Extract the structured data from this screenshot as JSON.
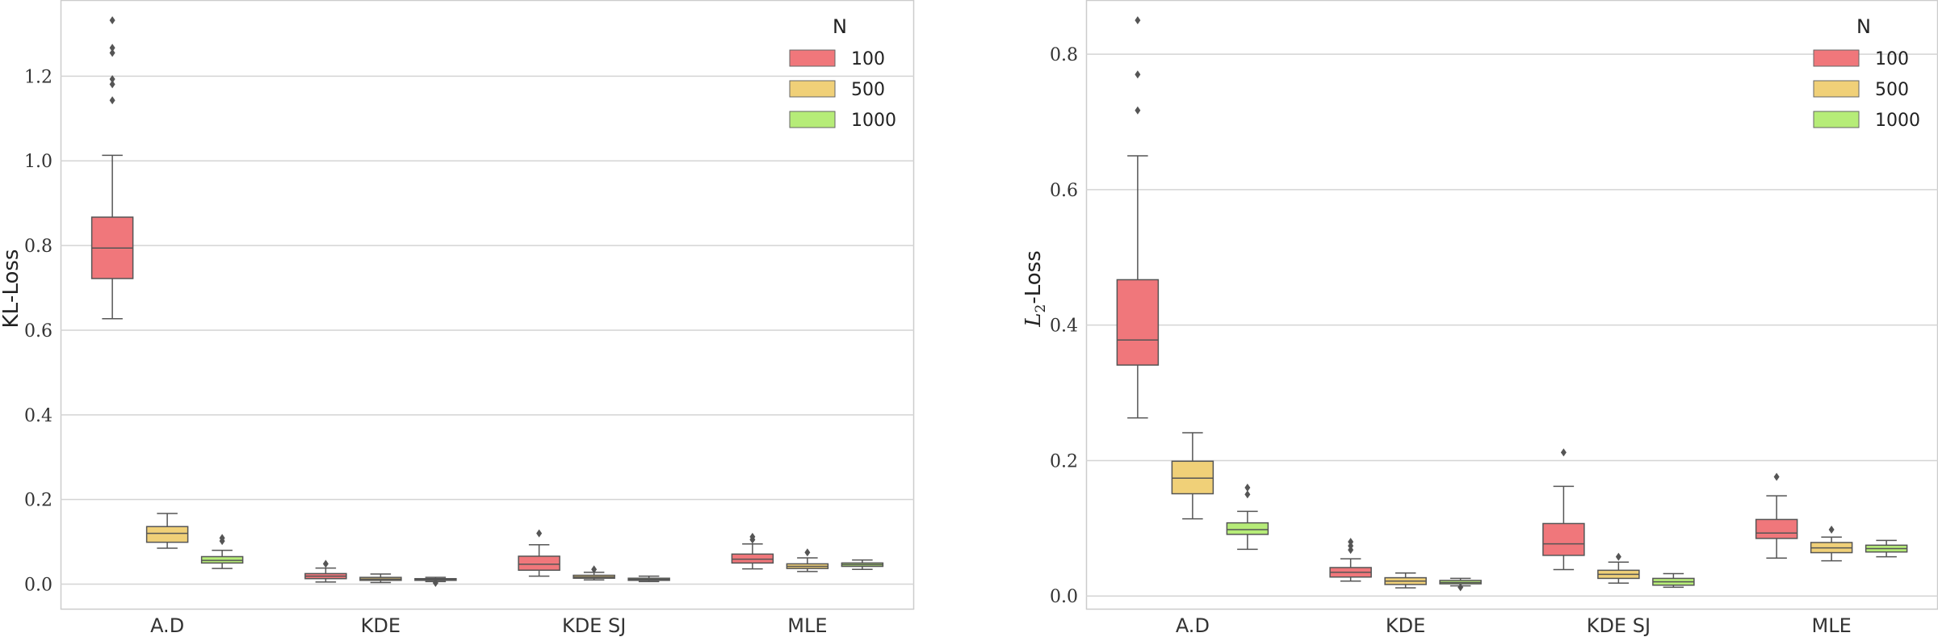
{
  "chart_data": [
    {
      "type": "box",
      "ylabel": "KL-Loss",
      "ylabel_main": "KL",
      "ylabel_rest": "-Loss",
      "ylim": [
        -0.06,
        1.38
      ],
      "yticks": [
        0.0,
        0.2,
        0.4,
        0.6,
        0.8,
        1.0,
        1.2
      ],
      "ytick_labels": [
        "0.0",
        "0.2",
        "0.4",
        "0.6",
        "0.8",
        "1.0",
        "1.2"
      ],
      "categories": [
        "A.D",
        "KDE",
        "KDE SJ",
        "MLE"
      ],
      "legend": {
        "title": "N",
        "placement": "top-right"
      },
      "grid": "horizontal",
      "series": [
        {
          "name": "100",
          "color": "#f0777b",
          "boxes": [
            {
              "whislo": 0.627,
              "q1": 0.722,
              "med": 0.794,
              "q3": 0.867,
              "whishi": 1.013,
              "fliers": [
                1.143,
                1.181,
                1.193,
                1.255,
                1.267,
                1.332
              ]
            },
            {
              "whislo": 0.005,
              "q1": 0.013,
              "med": 0.019,
              "q3": 0.025,
              "whishi": 0.038,
              "fliers": [
                0.048
              ]
            },
            {
              "whislo": 0.019,
              "q1": 0.033,
              "med": 0.047,
              "q3": 0.066,
              "whishi": 0.093,
              "fliers": [
                0.12
              ]
            },
            {
              "whislo": 0.036,
              "q1": 0.05,
              "med": 0.059,
              "q3": 0.071,
              "whishi": 0.095,
              "fliers": [
                0.105,
                0.112
              ]
            }
          ]
        },
        {
          "name": "500",
          "color": "#f0d078",
          "boxes": [
            {
              "whislo": 0.085,
              "q1": 0.099,
              "med": 0.12,
              "q3": 0.136,
              "whishi": 0.167,
              "fliers": []
            },
            {
              "whislo": 0.004,
              "q1": 0.009,
              "med": 0.012,
              "q3": 0.016,
              "whishi": 0.024,
              "fliers": []
            },
            {
              "whislo": 0.01,
              "q1": 0.014,
              "med": 0.017,
              "q3": 0.021,
              "whishi": 0.028,
              "fliers": [
                0.035
              ]
            },
            {
              "whislo": 0.03,
              "q1": 0.037,
              "med": 0.042,
              "q3": 0.048,
              "whishi": 0.062,
              "fliers": [
                0.075
              ]
            }
          ]
        },
        {
          "name": "1000",
          "color": "#b6ec78",
          "boxes": [
            {
              "whislo": 0.037,
              "q1": 0.05,
              "med": 0.056,
              "q3": 0.065,
              "whishi": 0.08,
              "fliers": [
                0.102,
                0.109
              ]
            },
            {
              "whislo": 0.006,
              "q1": 0.009,
              "med": 0.011,
              "q3": 0.013,
              "whishi": 0.016,
              "fliers": [
                0.003
              ]
            },
            {
              "whislo": 0.006,
              "q1": 0.009,
              "med": 0.011,
              "q3": 0.014,
              "whishi": 0.019,
              "fliers": []
            },
            {
              "whislo": 0.035,
              "q1": 0.042,
              "med": 0.046,
              "q3": 0.05,
              "whishi": 0.057,
              "fliers": []
            }
          ]
        }
      ]
    },
    {
      "type": "box",
      "ylabel": "L2-Loss",
      "ylabel_main": "L",
      "ylabel_sub": "2",
      "ylabel_rest": "-Loss",
      "ylim": [
        -0.02,
        0.88
      ],
      "yticks": [
        0.0,
        0.2,
        0.4,
        0.6,
        0.8
      ],
      "ytick_labels": [
        "0.0",
        "0.2",
        "0.4",
        "0.6",
        "0.8"
      ],
      "categories": [
        "A.D",
        "KDE",
        "KDE SJ",
        "MLE"
      ],
      "legend": {
        "title": "N",
        "placement": "top-right"
      },
      "grid": "horizontal",
      "series": [
        {
          "name": "100",
          "color": "#f0777b",
          "boxes": [
            {
              "whislo": 0.263,
              "q1": 0.341,
              "med": 0.378,
              "q3": 0.467,
              "whishi": 0.65,
              "fliers": [
                0.717,
                0.77,
                0.85
              ]
            },
            {
              "whislo": 0.022,
              "q1": 0.028,
              "med": 0.035,
              "q3": 0.042,
              "whishi": 0.055,
              "fliers": [
                0.068,
                0.074,
                0.08
              ]
            },
            {
              "whislo": 0.039,
              "q1": 0.06,
              "med": 0.077,
              "q3": 0.107,
              "whishi": 0.162,
              "fliers": [
                0.212
              ]
            },
            {
              "whislo": 0.056,
              "q1": 0.085,
              "med": 0.093,
              "q3": 0.113,
              "whishi": 0.148,
              "fliers": [
                0.176
              ]
            }
          ]
        },
        {
          "name": "500",
          "color": "#f0d078",
          "boxes": [
            {
              "whislo": 0.114,
              "q1": 0.151,
              "med": 0.174,
              "q3": 0.199,
              "whishi": 0.241,
              "fliers": []
            },
            {
              "whislo": 0.012,
              "q1": 0.017,
              "med": 0.022,
              "q3": 0.027,
              "whishi": 0.034,
              "fliers": []
            },
            {
              "whislo": 0.019,
              "q1": 0.026,
              "med": 0.032,
              "q3": 0.038,
              "whishi": 0.05,
              "fliers": [
                0.058
              ]
            },
            {
              "whislo": 0.052,
              "q1": 0.064,
              "med": 0.071,
              "q3": 0.079,
              "whishi": 0.087,
              "fliers": [
                0.098
              ]
            }
          ]
        },
        {
          "name": "1000",
          "color": "#b6ec78",
          "boxes": [
            {
              "whislo": 0.069,
              "q1": 0.091,
              "med": 0.098,
              "q3": 0.108,
              "whishi": 0.125,
              "fliers": [
                0.15,
                0.16
              ]
            },
            {
              "whislo": 0.015,
              "q1": 0.018,
              "med": 0.02,
              "q3": 0.023,
              "whishi": 0.026,
              "fliers": [
                0.013
              ]
            },
            {
              "whislo": 0.013,
              "q1": 0.016,
              "med": 0.021,
              "q3": 0.026,
              "whishi": 0.033,
              "fliers": []
            },
            {
              "whislo": 0.058,
              "q1": 0.065,
              "med": 0.07,
              "q3": 0.075,
              "whishi": 0.082,
              "fliers": []
            }
          ]
        }
      ]
    }
  ]
}
